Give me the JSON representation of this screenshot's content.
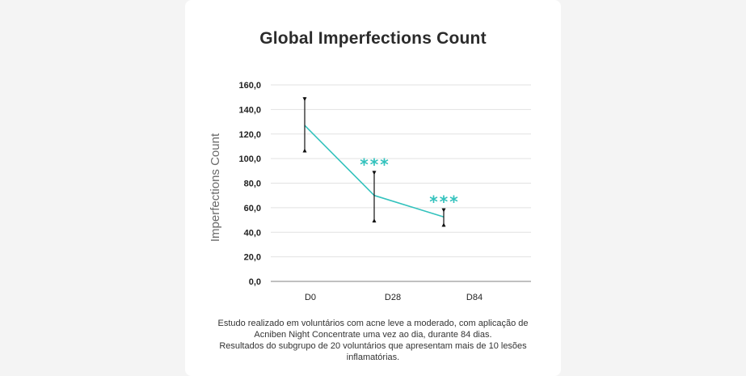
{
  "chart_data": {
    "type": "line",
    "title": "Global Imperfections Count",
    "xlabel": "",
    "ylabel": "Imperfections Count",
    "categories": [
      "D0",
      "D28",
      "D84"
    ],
    "series": [
      {
        "name": "Global Imperfections Count",
        "x": [
          "D0",
          "D28"
        ],
        "values": [
          127,
          70
        ],
        "note": "line drawn between time points; third point plotted midway before D84"
      }
    ],
    "points": [
      {
        "label": "D0",
        "value": 127,
        "err_low": 105,
        "err_high": 150,
        "sig": ""
      },
      {
        "label": "D28",
        "value": 70,
        "err_low": 48,
        "err_high": 90,
        "sig": "***"
      },
      {
        "label": "D84",
        "value": 52.5,
        "err_low": 44.5,
        "err_high": 59.5,
        "sig": "***"
      }
    ],
    "yticks": [
      "0,0",
      "20,0",
      "40,0",
      "60,0",
      "80,0",
      "100,0",
      "120,0",
      "140,0",
      "160,0"
    ],
    "ylim": [
      0,
      160
    ],
    "grid": true,
    "line_color": "#33c2bd"
  },
  "footnote": {
    "line1": "Estudo realizado em voluntários com acne leve a moderado, com aplicação de",
    "line2": "Acniben Night Concentrate uma vez ao dia, durante 84 dias.",
    "line3": "Resultados do subgrupo de 20 voluntários que apresentam mais de 10 lesões",
    "line4": "inflamatórias."
  }
}
